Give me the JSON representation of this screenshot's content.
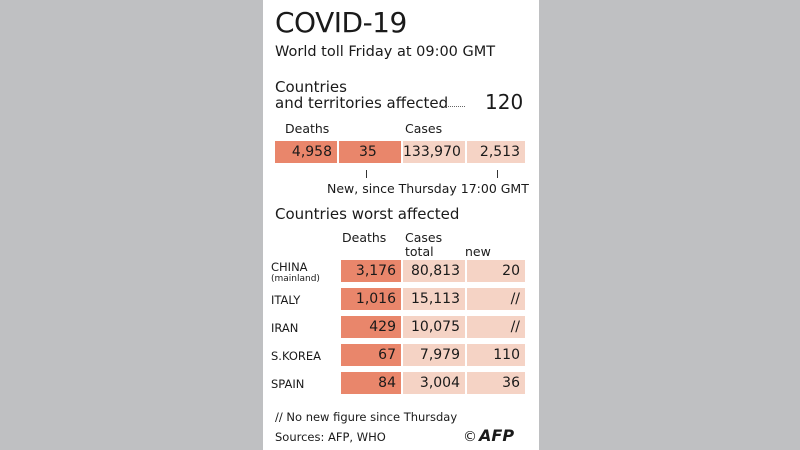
{
  "header": {
    "title": "COVID-19",
    "subtitle": "World toll Friday at 09:00 GMT",
    "countries_line1": "Countries",
    "countries_line2": "and territories affected",
    "countries_value": "120"
  },
  "totals": {
    "deaths_label": "Deaths",
    "cases_label": "Cases",
    "deaths_total": "4,958",
    "deaths_new": "35",
    "cases_total": "133,970",
    "cases_new": "2,513",
    "new_note": "New, since Thursday 17:00 GMT"
  },
  "worst": {
    "title": "Countries worst affected",
    "col_deaths": "Deaths",
    "col_cases_1": "Cases",
    "col_cases_2": "total",
    "col_new": "new",
    "rows": [
      {
        "country": "CHINA",
        "sub": "(mainland)",
        "deaths": "3,176",
        "cases": "80,813",
        "new": "20"
      },
      {
        "country": "ITALY",
        "sub": "",
        "deaths": "1,016",
        "cases": "15,113",
        "new": "//"
      },
      {
        "country": "IRAN",
        "sub": "",
        "deaths": "429",
        "cases": "10,075",
        "new": "//"
      },
      {
        "country": "S.KOREA",
        "sub": "",
        "deaths": "67",
        "cases": "7,979",
        "new": "110"
      },
      {
        "country": "SPAIN",
        "sub": "",
        "deaths": "84",
        "cases": "3,004",
        "new": "36"
      }
    ]
  },
  "footer": {
    "footnote": "// No new figure since Thursday",
    "sources": "Sources: AFP, WHO",
    "copyright": "©",
    "logo": "AFP"
  },
  "colors": {
    "deaths": "#e9866b",
    "cases": "#f5d3c5"
  },
  "chart_data": {
    "type": "table",
    "title": "COVID-19",
    "subtitle": "World toll Friday at 09:00 GMT",
    "countries_affected": 120,
    "totals": {
      "deaths": 4958,
      "deaths_new": 35,
      "cases": 133970,
      "cases_new": 2513
    },
    "columns": [
      "Deaths",
      "Cases total",
      "new"
    ],
    "rows": [
      {
        "country": "CHINA (mainland)",
        "deaths": 3176,
        "cases_total": 80813,
        "new": 20
      },
      {
        "country": "ITALY",
        "deaths": 1016,
        "cases_total": 15113,
        "new": "//"
      },
      {
        "country": "IRAN",
        "deaths": 429,
        "cases_total": 10075,
        "new": "//"
      },
      {
        "country": "S.KOREA",
        "deaths": 67,
        "cases_total": 7979,
        "new": 110
      },
      {
        "country": "SPAIN",
        "deaths": 84,
        "cases_total": 3004,
        "new": 36
      }
    ]
  }
}
